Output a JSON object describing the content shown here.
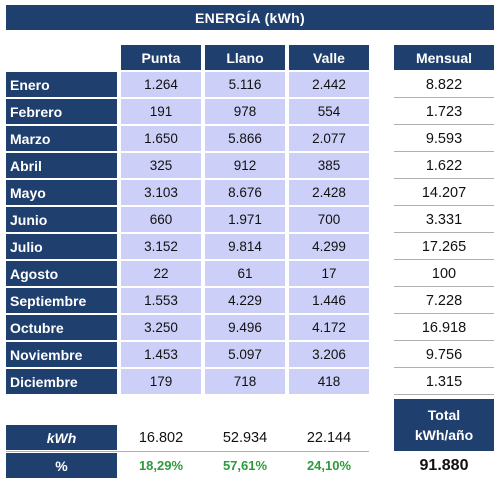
{
  "title": "ENERGÍA (kWh)",
  "columns": [
    "Punta",
    "Llano",
    "Valle"
  ],
  "mensual_header": "Mensual",
  "rows": [
    {
      "month": "Enero",
      "punta": "1.264",
      "llano": "5.116",
      "valle": "2.442",
      "mensual": "8.822"
    },
    {
      "month": "Febrero",
      "punta": "191",
      "llano": "978",
      "valle": "554",
      "mensual": "1.723"
    },
    {
      "month": "Marzo",
      "punta": "1.650",
      "llano": "5.866",
      "valle": "2.077",
      "mensual": "9.593"
    },
    {
      "month": "Abril",
      "punta": "325",
      "llano": "912",
      "valle": "385",
      "mensual": "1.622"
    },
    {
      "month": "Mayo",
      "punta": "3.103",
      "llano": "8.676",
      "valle": "2.428",
      "mensual": "14.207"
    },
    {
      "month": "Junio",
      "punta": "660",
      "llano": "1.971",
      "valle": "700",
      "mensual": "3.331"
    },
    {
      "month": "Julio",
      "punta": "3.152",
      "llano": "9.814",
      "valle": "4.299",
      "mensual": "17.265"
    },
    {
      "month": "Agosto",
      "punta": "22",
      "llano": "61",
      "valle": "17",
      "mensual": "100"
    },
    {
      "month": "Septiembre",
      "punta": "1.553",
      "llano": "4.229",
      "valle": "1.446",
      "mensual": "7.228"
    },
    {
      "month": "Octubre",
      "punta": "3.250",
      "llano": "9.496",
      "valle": "4.172",
      "mensual": "16.918"
    },
    {
      "month": "Noviembre",
      "punta": "1.453",
      "llano": "5.097",
      "valle": "3.206",
      "mensual": "9.756"
    },
    {
      "month": "Diciembre",
      "punta": "179",
      "llano": "718",
      "valle": "418",
      "mensual": "1.315"
    }
  ],
  "totals": {
    "kwh_label": "kWh",
    "kwh_values": [
      "16.802",
      "52.934",
      "22.144"
    ],
    "pct_label": "%",
    "pct_values": [
      "18,29%",
      "57,61%",
      "24,10%"
    ],
    "total_label_line1": "Total",
    "total_label_line2": "kWh/año",
    "total_value": "91.880"
  }
}
